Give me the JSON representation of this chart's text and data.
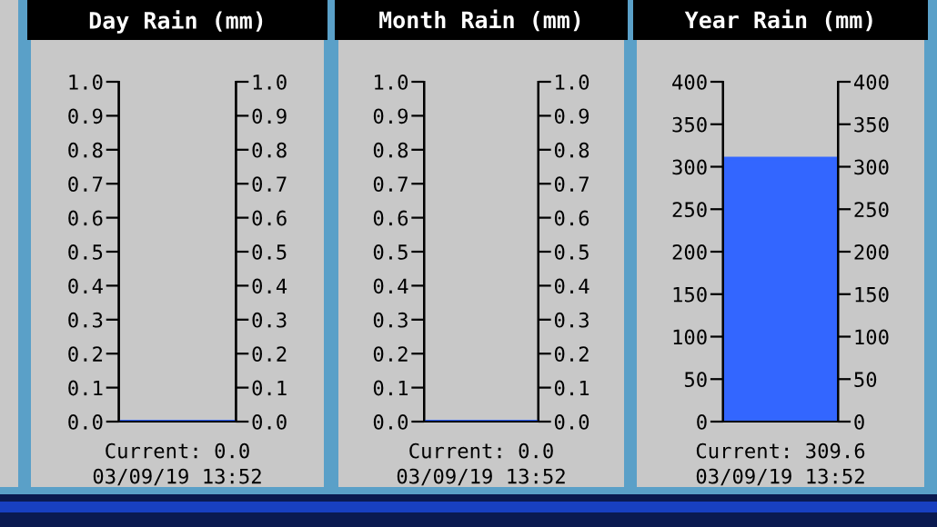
{
  "chart_data": [
    {
      "type": "bar",
      "title": "Day Rain (mm)",
      "categories": [
        null
      ],
      "values": [
        0.0
      ],
      "color": "#3366ff",
      "ylim": [
        0,
        1.0
      ],
      "yticks": [
        {
          "value": 0,
          "label": "0.0"
        },
        {
          "value": 0.1,
          "label": "0.1"
        },
        {
          "value": 0.2,
          "label": "0.2"
        },
        {
          "value": 0.3,
          "label": "0.3"
        },
        {
          "value": 0.4,
          "label": "0.4"
        },
        {
          "value": 0.5,
          "label": "0.5"
        },
        {
          "value": 0.6,
          "label": "0.6"
        },
        {
          "value": 0.7,
          "label": "0.7"
        },
        {
          "value": 0.8,
          "label": "0.8"
        },
        {
          "value": 0.9,
          "label": "0.9"
        },
        {
          "value": 1.0,
          "label": "1.0"
        }
      ],
      "y2lim": [
        0,
        1.0
      ],
      "y2ticks": [
        {
          "value": 0,
          "label": "0.0"
        },
        {
          "value": 0.1,
          "label": "0.1"
        },
        {
          "value": 0.2,
          "label": "0.2"
        },
        {
          "value": 0.3,
          "label": "0.3"
        },
        {
          "value": 0.4,
          "label": "0.4"
        },
        {
          "value": 0.5,
          "label": "0.5"
        },
        {
          "value": 0.6,
          "label": "0.6"
        },
        {
          "value": 0.7,
          "label": "0.7"
        },
        {
          "value": 0.8,
          "label": "0.8"
        },
        {
          "value": 0.9,
          "label": "0.9"
        },
        {
          "value": 1.0,
          "label": "1.0"
        }
      ],
      "annotations": [
        "Current: 0.0",
        "03/09/19 13:52"
      ]
    },
    {
      "type": "bar",
      "title": "Month Rain (mm)",
      "categories": [
        null
      ],
      "values": [
        0.0
      ],
      "color": "#3366ff",
      "ylim": [
        0,
        1.0
      ],
      "yticks": [
        {
          "value": 0,
          "label": "0.0"
        },
        {
          "value": 0.1,
          "label": "0.1"
        },
        {
          "value": 0.2,
          "label": "0.2"
        },
        {
          "value": 0.3,
          "label": "0.3"
        },
        {
          "value": 0.4,
          "label": "0.4"
        },
        {
          "value": 0.5,
          "label": "0.5"
        },
        {
          "value": 0.6,
          "label": "0.6"
        },
        {
          "value": 0.7,
          "label": "0.7"
        },
        {
          "value": 0.8,
          "label": "0.8"
        },
        {
          "value": 0.9,
          "label": "0.9"
        },
        {
          "value": 1.0,
          "label": "1.0"
        }
      ],
      "y2lim": [
        0,
        1.0
      ],
      "y2ticks": [
        {
          "value": 0,
          "label": "0.0"
        },
        {
          "value": 0.1,
          "label": "0.1"
        },
        {
          "value": 0.2,
          "label": "0.2"
        },
        {
          "value": 0.3,
          "label": "0.3"
        },
        {
          "value": 0.4,
          "label": "0.4"
        },
        {
          "value": 0.5,
          "label": "0.5"
        },
        {
          "value": 0.6,
          "label": "0.6"
        },
        {
          "value": 0.7,
          "label": "0.7"
        },
        {
          "value": 0.8,
          "label": "0.8"
        },
        {
          "value": 0.9,
          "label": "0.9"
        },
        {
          "value": 1.0,
          "label": "1.0"
        }
      ],
      "annotations": [
        "Current: 0.0",
        "03/09/19 13:52"
      ]
    },
    {
      "type": "bar",
      "title": "Year Rain (mm)",
      "categories": [
        null
      ],
      "values": [
        309.6
      ],
      "color": "#3366ff",
      "ylim": [
        0,
        400
      ],
      "yticks": [
        0,
        50,
        100,
        150,
        200,
        250,
        300,
        350,
        400
      ],
      "y2lim": [
        0,
        400
      ],
      "y2ticks": [
        0,
        50,
        100,
        150,
        200,
        250,
        300,
        350,
        400
      ],
      "annotations": [
        "Current: 309.6",
        "03/09/19 13:52"
      ]
    }
  ]
}
